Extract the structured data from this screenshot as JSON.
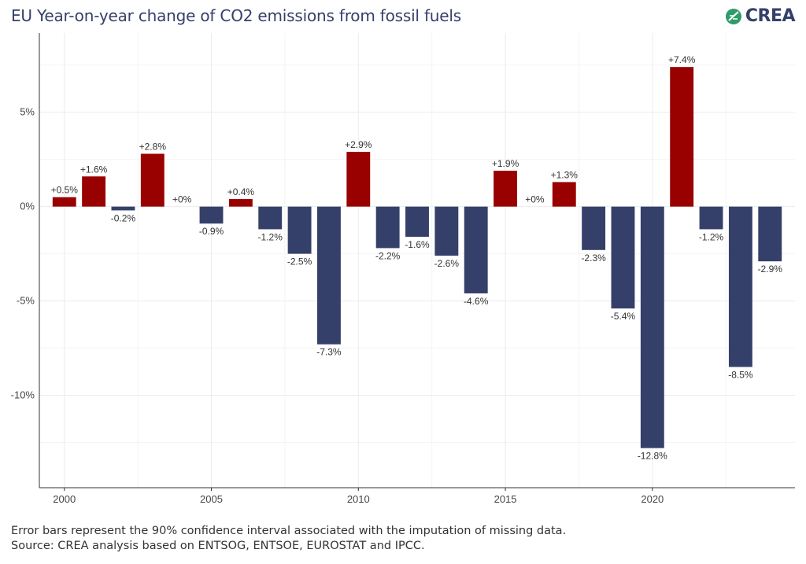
{
  "header": {
    "title": "EU Year-on-year change of CO2 emissions from fossil fuels",
    "logo_text": "CREA"
  },
  "footer": {
    "line1": "Error bars represent the 90% confidence interval associated with the imputation of missing data.",
    "line2": "Source: CREA analysis based on ENTSOG, ENTSOE, EUROSTAT and IPCC."
  },
  "colors": {
    "increase": "#990000",
    "decrease": "#35406a",
    "grid": "#ececec",
    "title": "#35406a"
  },
  "chart_data": {
    "type": "bar",
    "title": "EU Year-on-year change of CO2 emissions from fossil fuels",
    "xlabel": "",
    "ylabel": "",
    "x": [
      2000,
      2001,
      2002,
      2003,
      2004,
      2005,
      2006,
      2007,
      2008,
      2009,
      2010,
      2011,
      2012,
      2013,
      2014,
      2015,
      2016,
      2017,
      2018,
      2019,
      2020,
      2021,
      2022,
      2023,
      2024
    ],
    "values": [
      0.5,
      1.6,
      -0.2,
      2.8,
      0,
      -0.9,
      0.4,
      -1.2,
      -2.5,
      -7.3,
      2.9,
      -2.2,
      -1.6,
      -2.6,
      -4.6,
      1.9,
      0,
      1.3,
      -2.3,
      -5.4,
      -12.8,
      7.4,
      -1.2,
      -8.5,
      -2.9
    ],
    "labels": [
      "+0.5%",
      "+1.6%",
      "-0.2%",
      "+2.8%",
      "+0%",
      "-0.9%",
      "+0.4%",
      "-1.2%",
      "-2.5%",
      "-7.3%",
      "+2.9%",
      "-2.2%",
      "-1.6%",
      "-2.6%",
      "-4.6%",
      "+1.9%",
      "+0%",
      "+1.3%",
      "-2.3%",
      "-5.4%",
      "-12.8%",
      "+7.4%",
      "-1.2%",
      "-8.5%",
      "-2.9%"
    ],
    "y_ticks": [
      5,
      0,
      -5,
      -10
    ],
    "y_tick_labels": [
      "5%",
      "0%",
      "-5%",
      "-10%"
    ],
    "x_ticks": [
      2000,
      2005,
      2010,
      2015,
      2020
    ],
    "x_tick_labels": [
      "2000",
      "2005",
      "2010",
      "2015",
      "2020"
    ],
    "ylim": [
      -14.9,
      9.2
    ],
    "xlim": [
      1999.15,
      2024.85
    ],
    "grid": true,
    "legend": "none"
  }
}
